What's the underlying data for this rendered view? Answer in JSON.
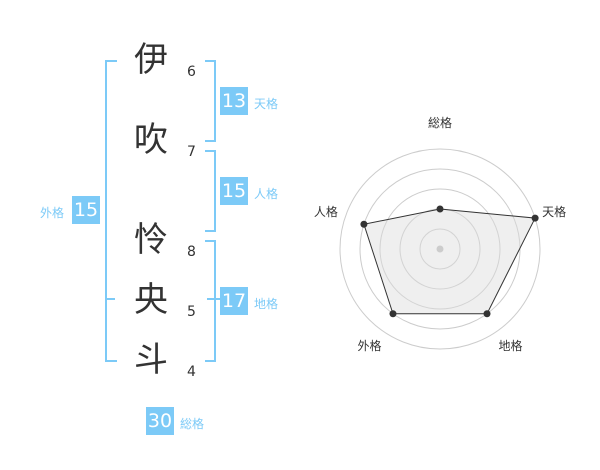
{
  "name": {
    "characters": [
      {
        "char": "伊",
        "strokes": "6"
      },
      {
        "char": "吹",
        "strokes": "7"
      },
      {
        "char": "怜",
        "strokes": "8"
      },
      {
        "char": "央",
        "strokes": "5"
      },
      {
        "char": "斗",
        "strokes": "4"
      }
    ]
  },
  "fortunes": {
    "tenkaku": {
      "label": "天格",
      "value": "13"
    },
    "jinkaku": {
      "label": "人格",
      "value": "15"
    },
    "chikaku": {
      "label": "地格",
      "value": "17"
    },
    "gaikaku": {
      "label": "外格",
      "value": "15"
    },
    "soukaku": {
      "label": "総格",
      "value": "30"
    }
  },
  "accent_color": "#7ccaf7",
  "chart_data": {
    "type": "radar",
    "axes": [
      "総格",
      "天格",
      "地格",
      "外格",
      "人格"
    ],
    "values": [
      2,
      5,
      4,
      4,
      4
    ],
    "range": [
      0,
      5
    ],
    "rings": 5
  }
}
